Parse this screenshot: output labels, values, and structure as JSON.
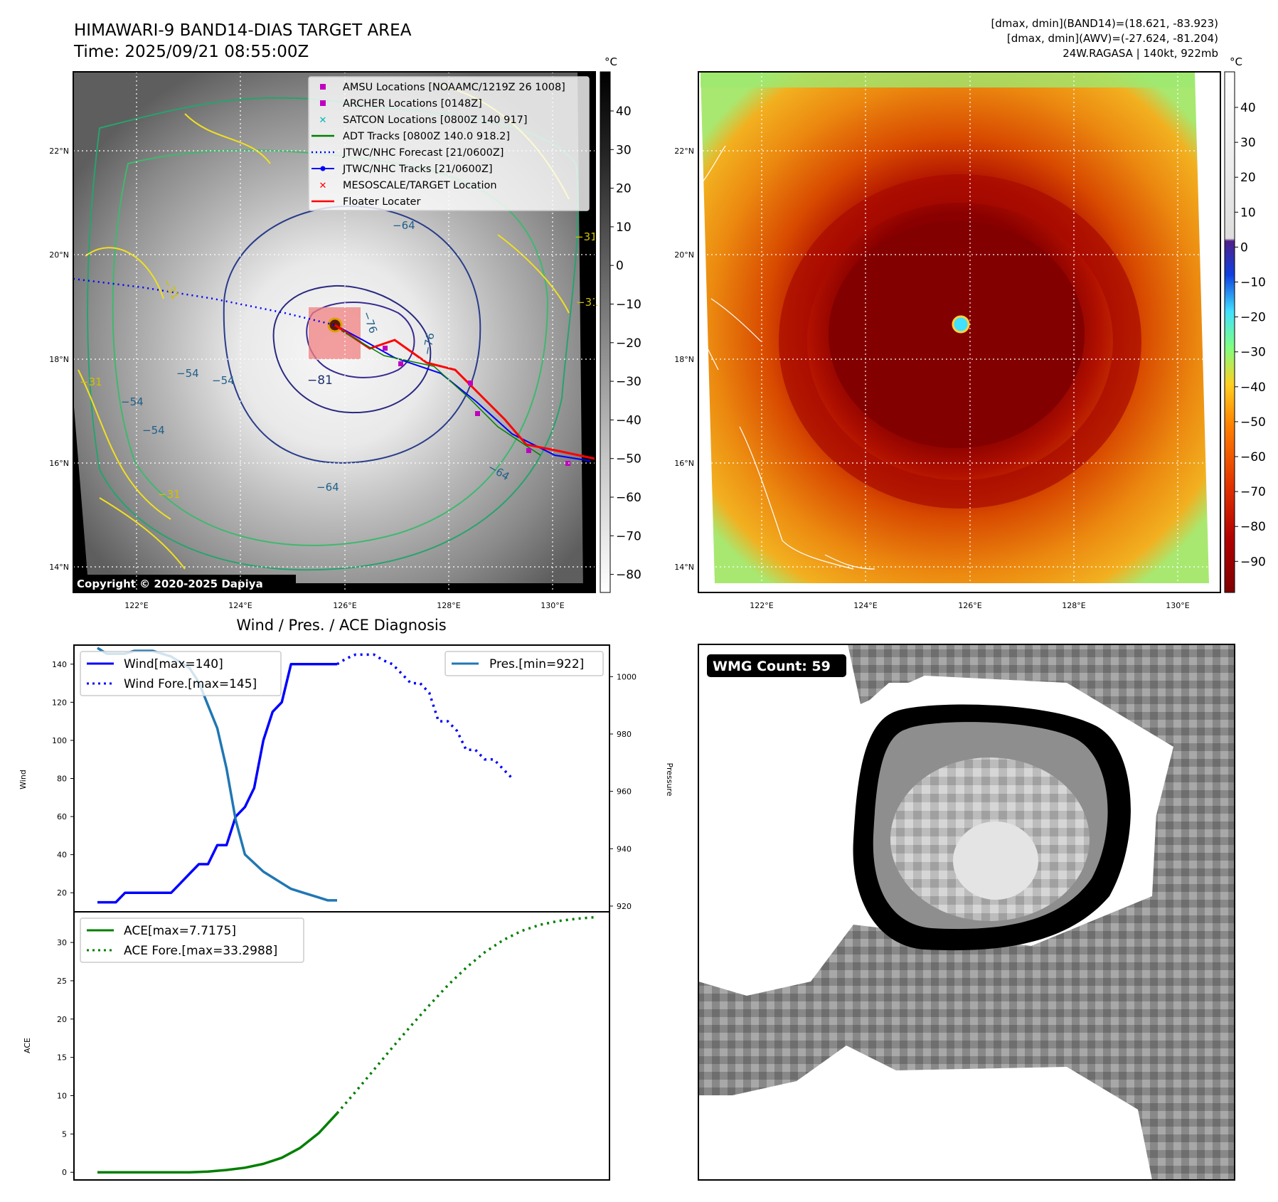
{
  "header": {
    "title": "HIMAWARI-9 BAND14-DIAS TARGET AREA",
    "time": "Time: 2025/09/21 08:55:00Z",
    "dmax_band14": "[dmax, dmin](BAND14)=(18.621, -83.923)",
    "dmax_awv": "[dmax, dmin](AWV)=(-27.624, -81.204)",
    "storm": "24W.RAGASA | 140kt, 922mb"
  },
  "map": {
    "lat_labels": [
      "22°N",
      "20°N",
      "18°N",
      "16°N",
      "14°N"
    ],
    "lon_labels": [
      "122°E",
      "124°E",
      "126°E",
      "128°E",
      "130°E"
    ],
    "colorbar_unit": "°C",
    "left_colorbar_ticks": [
      "40",
      "30",
      "20",
      "10",
      "0",
      "−10",
      "−20",
      "−30",
      "−40",
      "−50",
      "−60",
      "−70",
      "−80"
    ],
    "right_colorbar_ticks": [
      "40",
      "30",
      "20",
      "10",
      "0",
      "−10",
      "−20",
      "−30",
      "−40",
      "−50",
      "−60",
      "−70",
      "−80",
      "−90"
    ],
    "contour_labels": [
      "−64",
      "−76",
      "−76",
      "−81",
      "−54",
      "−54",
      "−64",
      "−64",
      "−31",
      "−31",
      "−31",
      "−54",
      "−54",
      "−31",
      "−31"
    ],
    "copyright": "Copyright © 2020-2025 Dapiya",
    "legend": [
      {
        "label": "AMSU Locations [NOAAMC/1219Z 26 1008]",
        "color": "#c000c0",
        "marker": "square"
      },
      {
        "label": "ARCHER Locations [0148Z]",
        "color": "#c000c0",
        "marker": "square"
      },
      {
        "label": "SATCON Locations [0800Z 140 917]",
        "color": "#00b8b8",
        "marker": "x"
      },
      {
        "label": "ADT Tracks [0800Z 140.0 918.2]",
        "color": "#007f00",
        "marker": "line"
      },
      {
        "label": "JTWC/NHC Forecast [21/0600Z]",
        "color": "#0000ff",
        "marker": "dotted"
      },
      {
        "label": "JTWC/NHC Tracks [21/0600Z]",
        "color": "#0000ff",
        "marker": "line-dot"
      },
      {
        "label": "MESOSCALE/TARGET Location",
        "color": "#ff0000",
        "marker": "x"
      },
      {
        "label": "Floater Locater",
        "color": "#ff0000",
        "marker": "line"
      }
    ]
  },
  "wmg": {
    "label": "WMG Count: 59"
  },
  "chart_data": [
    {
      "type": "line",
      "title": "Wind / Pres. / ACE Diagnosis",
      "ylabel": "Wind",
      "ylabel_right": "Pressure",
      "ylim": [
        10,
        150
      ],
      "ylim_right": [
        918,
        1011
      ],
      "yticks": [
        "20",
        "40",
        "60",
        "80",
        "100",
        "120",
        "140"
      ],
      "yticks_right": [
        "920",
        "940",
        "960",
        "980",
        "1000"
      ],
      "x_count": 54,
      "series": [
        {
          "name": "Wind[max=140]",
          "color": "#0000ff",
          "style": "solid",
          "x": [
            0,
            1,
            2,
            3,
            4,
            5,
            6,
            7,
            8,
            9,
            10,
            11,
            12,
            13,
            14,
            15,
            16,
            17,
            18,
            19,
            20,
            21,
            22,
            23,
            24,
            25,
            26
          ],
          "values": [
            15,
            15,
            15,
            20,
            20,
            20,
            20,
            20,
            20,
            25,
            30,
            35,
            35,
            45,
            45,
            60,
            65,
            75,
            100,
            115,
            120,
            140,
            140,
            140,
            140,
            140,
            140
          ]
        },
        {
          "name": "Wind Fore.[max=145]",
          "color": "#0000ff",
          "style": "dotted",
          "x": [
            26,
            27,
            28,
            29,
            30,
            31,
            32,
            33,
            34,
            35,
            36,
            37,
            38,
            39,
            40,
            41,
            42,
            43,
            44,
            45
          ],
          "values": [
            140,
            143,
            145,
            145,
            145,
            142,
            140,
            135,
            130,
            130,
            125,
            110,
            110,
            105,
            95,
            95,
            90,
            90,
            85,
            80
          ]
        },
        {
          "name": "Pres.[min=922]",
          "color": "#1f77b4",
          "style": "solid",
          "axis": "right",
          "x": [
            0,
            1,
            2,
            3,
            4,
            5,
            6,
            7,
            8,
            9,
            10,
            11,
            12,
            13,
            14,
            15,
            16,
            17,
            18,
            19,
            20,
            21,
            22,
            23,
            24,
            25,
            26
          ],
          "values": [
            1010,
            1008,
            1008,
            1008,
            1009,
            1009,
            1009,
            1008,
            1007,
            1005,
            1003,
            998,
            990,
            982,
            968,
            950,
            938,
            935,
            932,
            930,
            928,
            926,
            925,
            924,
            923,
            922,
            922
          ]
        }
      ]
    },
    {
      "type": "line",
      "ylabel": "ACE",
      "ylim": [
        -1,
        34
      ],
      "yticks": [
        "0",
        "5",
        "10",
        "15",
        "20",
        "25",
        "30"
      ],
      "x_count": 54,
      "series": [
        {
          "name": "ACE[max=7.7175]",
          "color": "#007f00",
          "style": "solid",
          "x": [
            0,
            2,
            4,
            6,
            8,
            10,
            12,
            14,
            16,
            18,
            20,
            22,
            24,
            26
          ],
          "values": [
            0,
            0,
            0,
            0,
            0,
            0,
            0.1,
            0.3,
            0.6,
            1.1,
            1.9,
            3.2,
            5.1,
            7.7
          ]
        },
        {
          "name": "ACE Fore.[max=33.2988]",
          "color": "#007f00",
          "style": "dotted",
          "x": [
            26,
            28,
            30,
            32,
            34,
            36,
            38,
            40,
            42,
            44,
            46,
            48,
            50,
            52,
            54
          ],
          "values": [
            7.7,
            10.5,
            13.4,
            16.3,
            19.1,
            21.8,
            24.4,
            26.7,
            28.7,
            30.3,
            31.5,
            32.3,
            32.8,
            33.1,
            33.3
          ]
        }
      ]
    }
  ]
}
